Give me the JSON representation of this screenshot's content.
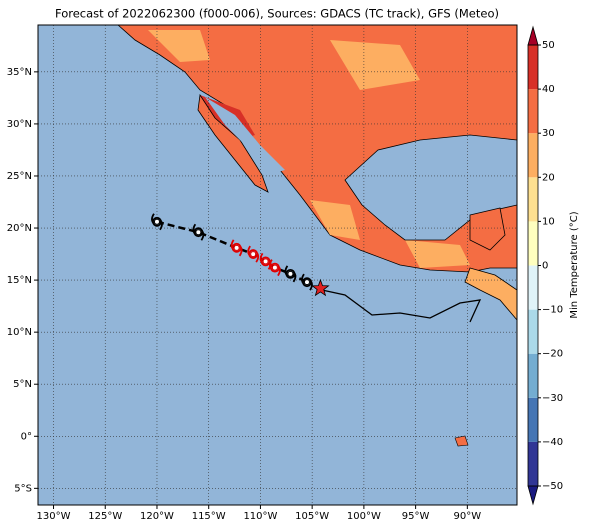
{
  "chart_data": {
    "type": "map",
    "title": "Forecast of 2022062300 (f000-006), Sources: GDACS (TC track), GFS (Meteo)",
    "xlim": [
      -131.5,
      -85.2
    ],
    "ylim": [
      -6.6,
      39.5
    ],
    "xticks": [
      {
        "value": -130,
        "label": "130°W"
      },
      {
        "value": -125,
        "label": "125°W"
      },
      {
        "value": -120,
        "label": "120°W"
      },
      {
        "value": -115,
        "label": "115°W"
      },
      {
        "value": -110,
        "label": "110°W"
      },
      {
        "value": -105,
        "label": "105°W"
      },
      {
        "value": -100,
        "label": "100°W"
      },
      {
        "value": -95,
        "label": "95°W"
      },
      {
        "value": -90,
        "label": "90°W"
      }
    ],
    "yticks": [
      {
        "value": -5,
        "label": "5°S"
      },
      {
        "value": 0,
        "label": "0°"
      },
      {
        "value": 5,
        "label": "5°N"
      },
      {
        "value": 10,
        "label": "10°N"
      },
      {
        "value": 15,
        "label": "15°N"
      },
      {
        "value": 20,
        "label": "20°N"
      },
      {
        "value": 25,
        "label": "25°N"
      },
      {
        "value": 30,
        "label": "30°N"
      },
      {
        "value": 35,
        "label": "35°N"
      }
    ],
    "grid": true,
    "track": {
      "lon": [
        -120.0,
        -116.0,
        -112.3,
        -110.7,
        -109.5,
        -108.6,
        -107.1,
        -105.5
      ],
      "lat": [
        20.6,
        19.6,
        18.1,
        17.5,
        16.8,
        16.2,
        15.6,
        14.8
      ],
      "colors": [
        "#000000",
        "#000000",
        "#e00000",
        "#e00000",
        "#e00000",
        "#e00000",
        "#000000",
        "#000000"
      ]
    },
    "current": {
      "lon": -104.2,
      "lat": 14.2,
      "color": "#e02020"
    },
    "colorbar": {
      "label": "Min Temperature (°C)",
      "ticks": [
        {
          "value": -50,
          "label": "−50"
        },
        {
          "value": -40,
          "label": "−40"
        },
        {
          "value": -30,
          "label": "−30"
        },
        {
          "value": -20,
          "label": "−20"
        },
        {
          "value": -10,
          "label": "−10"
        },
        0,
        10,
        20,
        30,
        40,
        50
      ],
      "colors": [
        "#313695",
        "#4575b4",
        "#74add1",
        "#abd9e9",
        "#e0f3f8",
        "#ffffbf",
        "#fee090",
        "#fdae61",
        "#f46d43",
        "#d73027"
      ],
      "extend_colors": [
        "#1a1a80",
        "#a50026"
      ]
    }
  }
}
